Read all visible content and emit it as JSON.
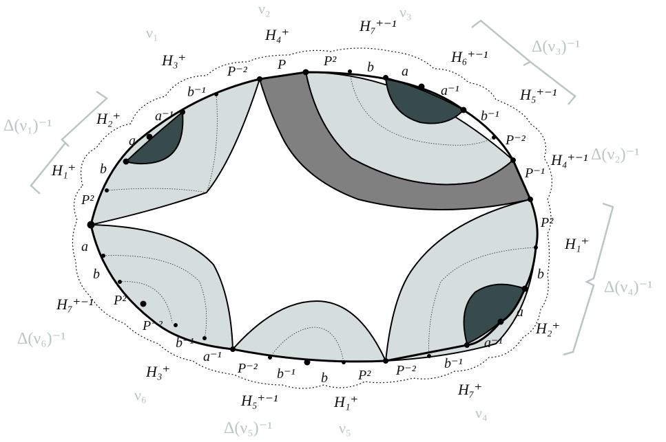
{
  "colors": {
    "light_region": "#d5dedd",
    "dark_region": "#374a4c",
    "band": "#808080",
    "outline": "#000000",
    "grey_label": "#b9c6c6"
  },
  "labels": {
    "v1": "ν₁",
    "v2": "ν₂",
    "v3": "ν₃",
    "v4": "ν₄",
    "v5": "ν₅",
    "v6": "ν₆",
    "H4p_top": "H₄⁺",
    "H7pinv_top": "H₇⁺⁻¹",
    "H3p_top": "H₃⁺",
    "H6pinv": "H₆⁺⁻¹",
    "H5pinv_right": "H₅⁺⁻¹",
    "H2p_left": "H₂⁺",
    "H1p_left": "H₁⁺",
    "H4pinv": "H₄⁺⁻¹",
    "H1p_right": "H₁⁺",
    "H2p_right": "H₂⁺",
    "H7pinv_left": "H₇⁺⁻¹",
    "H3p_bottom": "H₃⁺",
    "H5pinv_bottom": "H₅⁺⁻¹",
    "H1p_bottom": "H₁⁺",
    "H7p_bottom": "H₇⁺",
    "Delta_v1": "Δ(ν₁)⁻¹",
    "Delta_v3": "Δ(ν₃)⁻¹",
    "Delta_v2": "Δ(ν₂)⁻¹",
    "Delta_v4": "Δ(ν₄)⁻¹",
    "Delta_v6": "Δ(ν₆)⁻¹",
    "Delta_v5": "Δ(ν₅)⁻¹",
    "P": "P",
    "P2": "P²",
    "Pm2": "P⁻²",
    "Pm1": "P⁻¹",
    "a": "a",
    "b": "b",
    "ainv": "a⁻¹",
    "binv": "b⁻¹"
  }
}
